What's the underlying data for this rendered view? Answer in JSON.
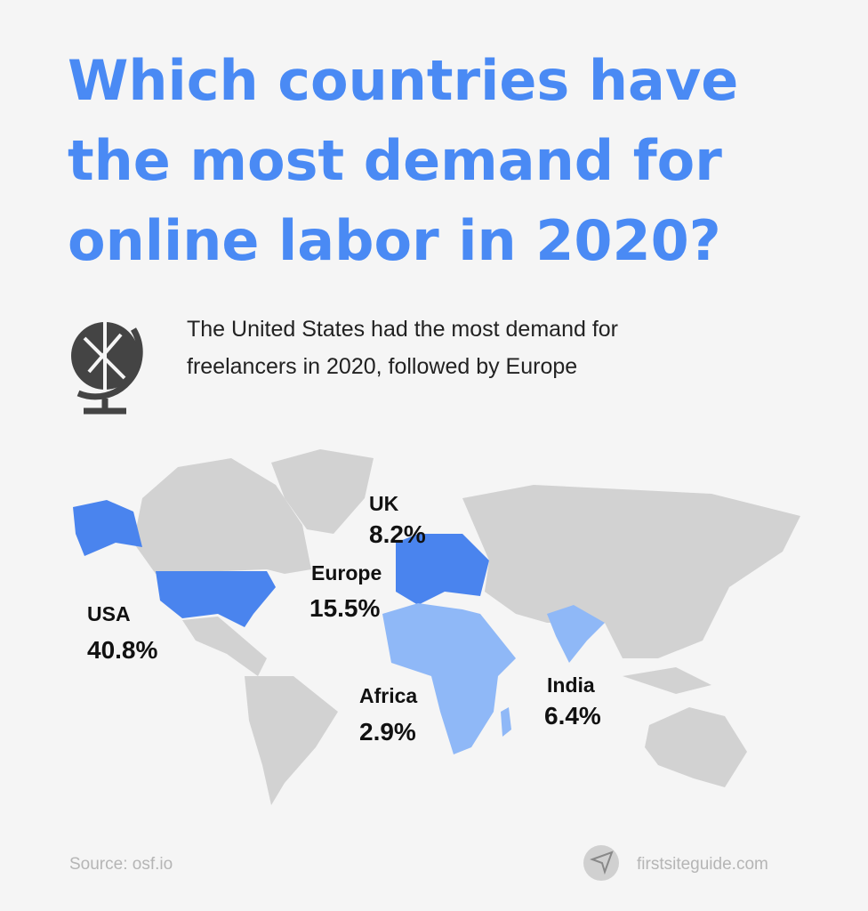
{
  "title": [
    "Which countries have",
    "the most demand for",
    "online labor in 2020?"
  ],
  "subtitle": [
    "The United States had the most demand for",
    "freelancers in 2020, followed by Europe"
  ],
  "regions": [
    {
      "name": "UK",
      "value": "8.2%"
    },
    {
      "name": "Europe",
      "value": "15.5%"
    },
    {
      "name": "USA",
      "value": "40.8%"
    },
    {
      "name": "Africa",
      "value": "2.9%"
    },
    {
      "name": "India",
      "value": "6.4%"
    }
  ],
  "source": "Source: osf.io",
  "brand": "firstsiteguide.com"
}
